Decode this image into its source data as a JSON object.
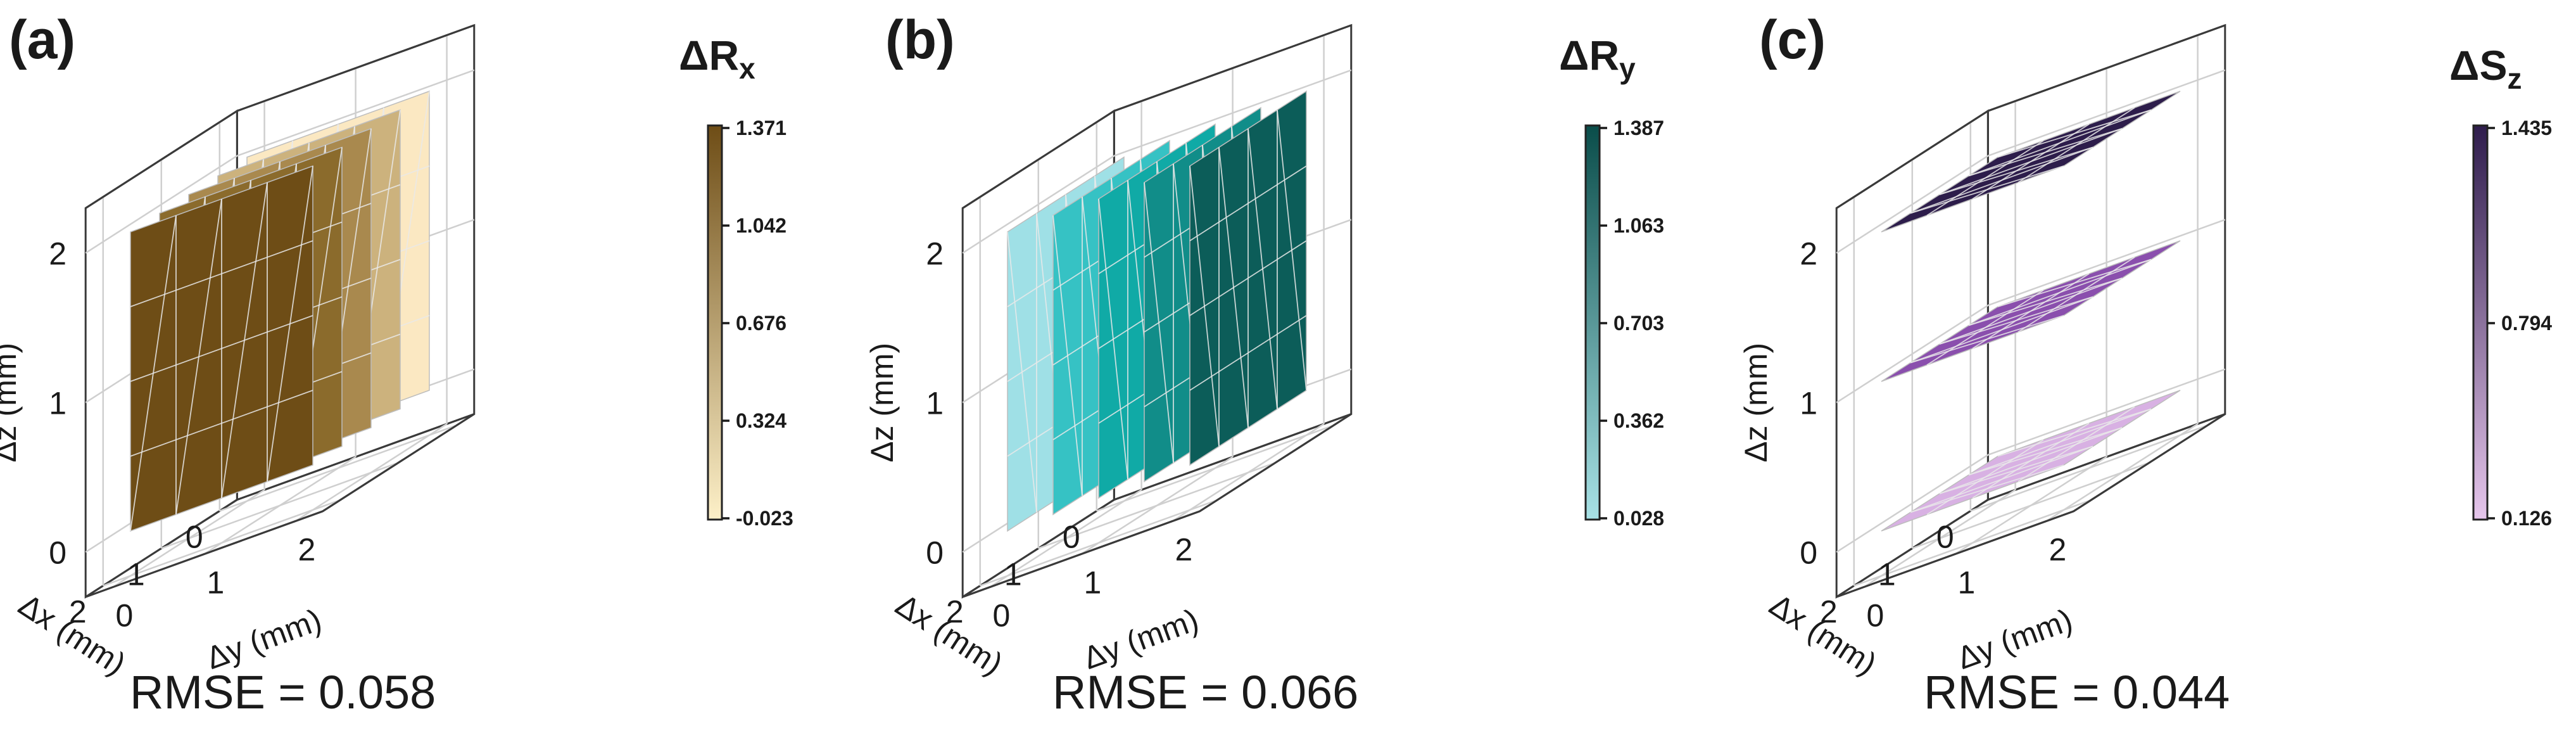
{
  "chart_data": [
    {
      "type": "3d-surface",
      "panel_label": "(a)",
      "colorbar_title": "ΔR",
      "colorbar_subscript": "x",
      "colorbar_ticks": [
        "1.371",
        "1.042",
        "0.676",
        "0.324",
        "-0.023"
      ],
      "colorbar_colors": [
        "#fdf0c8",
        "#6e4d16"
      ],
      "xlabel": "Δx (mm)",
      "ylabel": "Δy (mm)",
      "zlabel": "Δz (mm)",
      "x_ticks": [
        "0",
        "1",
        "2"
      ],
      "y_ticks": [
        "0",
        "1",
        "2"
      ],
      "z_ticks": [
        "0",
        "1",
        "2"
      ],
      "plane_orientation": "constant-x",
      "plane_positions": [
        0,
        0.5,
        1,
        1.5,
        2
      ],
      "plane_values": [
        -0.023,
        0.324,
        0.676,
        1.042,
        1.371
      ],
      "plane_colors": [
        "#fbe8c2",
        "#ccb27d",
        "#a9894e",
        "#8b6b2c",
        "#6e4d16"
      ],
      "rmse_text": "RMSE = 0.058"
    },
    {
      "type": "3d-surface",
      "panel_label": "(b)",
      "colorbar_title": "ΔR",
      "colorbar_subscript": "y",
      "colorbar_ticks": [
        "1.387",
        "1.063",
        "0.703",
        "0.362",
        "0.028"
      ],
      "colorbar_colors": [
        "#a8e2e6",
        "#0a4d4a"
      ],
      "xlabel": "Δx (mm)",
      "ylabel": "Δy (mm)",
      "zlabel": "Δz (mm)",
      "x_ticks": [
        "0",
        "1",
        "2"
      ],
      "y_ticks": [
        "0",
        "1",
        "2"
      ],
      "z_ticks": [
        "0",
        "1",
        "2"
      ],
      "plane_orientation": "constant-y",
      "plane_positions": [
        0,
        0.5,
        1,
        1.5,
        2
      ],
      "plane_values": [
        0.028,
        0.362,
        0.703,
        1.063,
        1.387
      ],
      "plane_colors": [
        "#9fe0e6",
        "#36c2c4",
        "#10aaa6",
        "#118d89",
        "#0c5d59"
      ],
      "rmse_text": "RMSE = 0.066"
    },
    {
      "type": "3d-surface",
      "panel_label": "(c)",
      "colorbar_title": "ΔS",
      "colorbar_subscript": "z",
      "colorbar_ticks": [
        "1.435",
        "0.794",
        "0.126"
      ],
      "colorbar_colors": [
        "#e6c6ec",
        "#2f1d4d"
      ],
      "xlabel": "Δx (mm)",
      "ylabel": "Δy (mm)",
      "zlabel": "Δz (mm)",
      "x_ticks": [
        "0",
        "1",
        "2"
      ],
      "y_ticks": [
        "0",
        "1",
        "2"
      ],
      "z_ticks": [
        "0",
        "1",
        "2"
      ],
      "plane_orientation": "constant-z",
      "plane_positions": [
        0,
        1,
        2
      ],
      "plane_values": [
        0.126,
        0.794,
        1.435
      ],
      "plane_colors": [
        "#d8b1e3",
        "#8a4fad",
        "#2d1d4b"
      ],
      "rmse_text": "RMSE = 0.044"
    }
  ]
}
